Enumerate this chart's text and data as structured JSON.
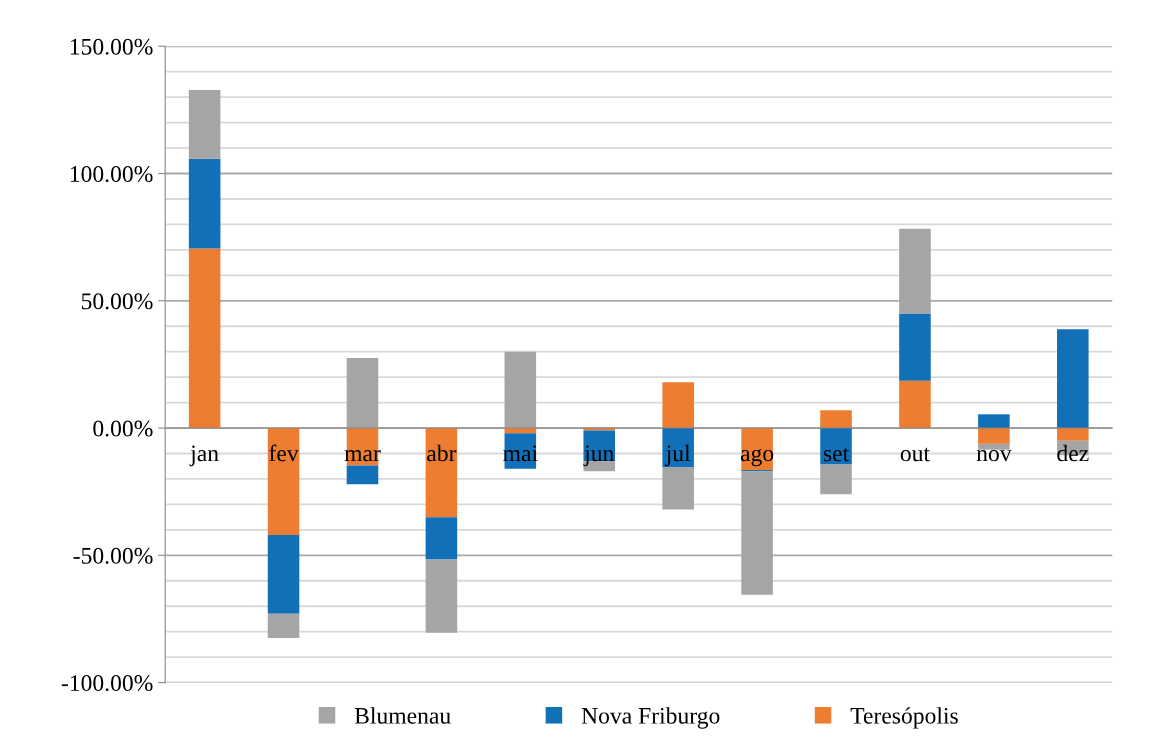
{
  "chart_data": {
    "type": "bar",
    "stacked": true,
    "categories": [
      "jan",
      "fev",
      "mar",
      "abr",
      "mai",
      "jun",
      "jul",
      "ago",
      "set",
      "out",
      "nov",
      "dez"
    ],
    "series": [
      {
        "name": "Teresópolis",
        "color": "#ed7d31",
        "values": [
          70.5,
          -42,
          -14.7,
          -35,
          -2,
          -1,
          18,
          -16.5,
          7,
          18.6,
          -6.2,
          -5
        ]
      },
      {
        "name": "Nova Friburgo",
        "color": "#1170b8",
        "values": [
          35.3,
          -31,
          -7.4,
          -16.6,
          -14,
          -12,
          -15.5,
          -0.5,
          -14.3,
          26.4,
          5.4,
          38.8
        ]
      },
      {
        "name": "Blumenau",
        "color": "#a5a5a5",
        "values": [
          27,
          -9.5,
          27.5,
          -28.8,
          30,
          -4,
          -16.5,
          -48.5,
          -11.7,
          33.3,
          -2.3,
          -5.7
        ]
      }
    ],
    "ylim": [
      -100,
      150
    ],
    "yticks": [
      {
        "value": -100,
        "label": "-100.00%"
      },
      {
        "value": -90,
        "label": null
      },
      {
        "value": -80,
        "label": null
      },
      {
        "value": -70,
        "label": null
      },
      {
        "value": -60,
        "label": null
      },
      {
        "value": -50,
        "label": "-50.00%"
      },
      {
        "value": -40,
        "label": null
      },
      {
        "value": -30,
        "label": null
      },
      {
        "value": -20,
        "label": null
      },
      {
        "value": -10,
        "label": null
      },
      {
        "value": 0,
        "label": "0.00%"
      },
      {
        "value": 10,
        "label": null
      },
      {
        "value": 20,
        "label": null
      },
      {
        "value": 30,
        "label": null
      },
      {
        "value": 40,
        "label": null
      },
      {
        "value": 50,
        "label": "50.00%"
      },
      {
        "value": 60,
        "label": null
      },
      {
        "value": 70,
        "label": null
      },
      {
        "value": 80,
        "label": null
      },
      {
        "value": 90,
        "label": null
      },
      {
        "value": 100,
        "label": "100.00%"
      },
      {
        "value": 110,
        "label": null
      },
      {
        "value": 120,
        "label": null
      },
      {
        "value": 130,
        "label": null
      },
      {
        "value": 140,
        "label": null
      },
      {
        "value": 150,
        "label": "150.00%"
      }
    ],
    "grid": "y",
    "legend": "bottom"
  }
}
